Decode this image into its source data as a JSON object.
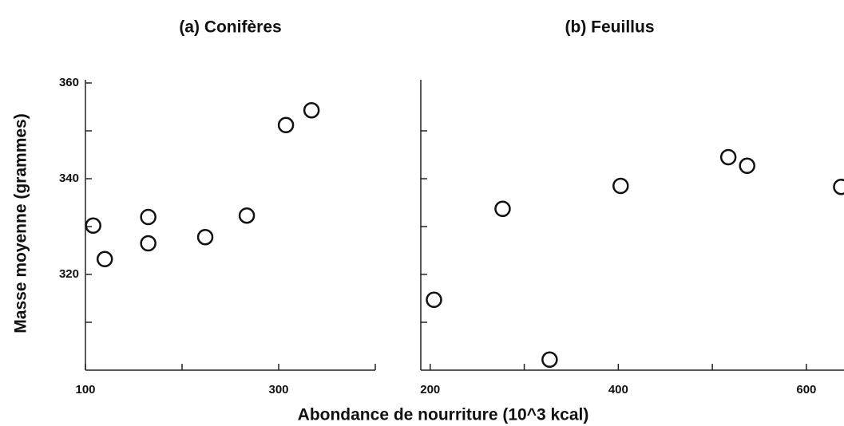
{
  "chart_data": [
    {
      "type": "scatter",
      "title": "(a) Conifères",
      "x": [
        108,
        120,
        165,
        165,
        224,
        267,
        307.5,
        334
      ],
      "values": [
        330.2,
        323.2,
        326.5,
        332,
        327.8,
        332.3,
        351.2,
        354.3
      ],
      "xlim": [
        100,
        400
      ],
      "xticks": [
        100,
        300
      ],
      "xminorticks": [
        200,
        400
      ],
      "ylim": [
        300,
        360
      ],
      "yticks": [
        320,
        340,
        360
      ],
      "yminorticks": [
        310,
        330,
        350
      ],
      "color": "#111111"
    },
    {
      "type": "scatter",
      "title": "(b) Feuillus",
      "x": [
        204,
        277,
        327,
        402.5,
        517,
        537,
        637
      ],
      "values": [
        314.7,
        333.7,
        302.2,
        338.5,
        344.5,
        342.7,
        338.3
      ],
      "xlim": [
        190,
        640
      ],
      "xticks": [
        200,
        400,
        600
      ],
      "xminorticks": [
        300,
        500
      ],
      "ylim": [
        300,
        360
      ],
      "yticks": [],
      "yminorticks": [
        310,
        320,
        330,
        340,
        350
      ],
      "color": "#111111"
    }
  ],
  "ylabel": "Masse moyenne (grammes)",
  "xlabel": "Abondance de nourriture (10^3 kcal)"
}
